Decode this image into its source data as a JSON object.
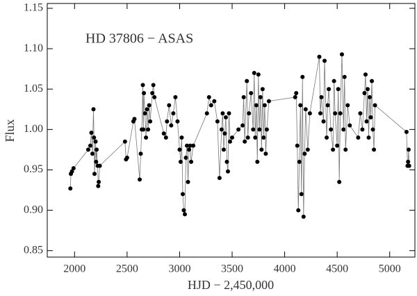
{
  "chart_data": {
    "type": "line",
    "annotation": "HD 37806 − ASAS",
    "x_label": "HJD − 2,450,000",
    "y_label": "Flux",
    "color": "#000000",
    "line_color": "#777777",
    "markers": true,
    "x": [
      1960,
      1965,
      1975,
      1990,
      2130,
      2150,
      2160,
      2170,
      2180,
      2185,
      2190,
      2200,
      2205,
      2210,
      2220,
      2225,
      2230,
      2240,
      2480,
      2490,
      2500,
      2560,
      2570,
      2620,
      2630,
      2640,
      2650,
      2655,
      2660,
      2670,
      2680,
      2690,
      2700,
      2710,
      2720,
      2740,
      2750,
      2760,
      2850,
      2870,
      2880,
      2900,
      2920,
      2940,
      2960,
      2980,
      3000,
      3010,
      3020,
      3030,
      3040,
      3050,
      3060,
      3070,
      3080,
      3090,
      3100,
      3110,
      3130,
      3260,
      3280,
      3300,
      3330,
      3360,
      3380,
      3400,
      3410,
      3420,
      3430,
      3440,
      3450,
      3460,
      3470,
      3480,
      3500,
      3560,
      3600,
      3610,
      3620,
      3640,
      3650,
      3660,
      3680,
      3700,
      3710,
      3720,
      3730,
      3740,
      3750,
      3760,
      3770,
      3780,
      3790,
      3800,
      3810,
      3820,
      3830,
      3850,
      4100,
      4110,
      4120,
      4130,
      4140,
      4150,
      4160,
      4170,
      4180,
      4190,
      4200,
      4220,
      4240,
      4330,
      4340,
      4350,
      4370,
      4380,
      4400,
      4410,
      4420,
      4440,
      4460,
      4470,
      4480,
      4500,
      4510,
      4520,
      4530,
      4545,
      4560,
      4570,
      4580,
      4600,
      4620,
      4700,
      4720,
      4740,
      4760,
      4770,
      4780,
      4790,
      4800,
      4810,
      4820,
      4830,
      4840,
      4850,
      4860,
      5160,
      5170,
      5175,
      5180,
      5185
    ],
    "values": [
      0.927,
      0.945,
      0.948,
      0.952,
      0.975,
      0.98,
      0.996,
      0.97,
      1.025,
      0.99,
      0.945,
      0.985,
      0.96,
      0.975,
      0.955,
      0.93,
      0.935,
      0.955,
      0.985,
      0.963,
      0.965,
      1.01,
      1.013,
      0.938,
      0.97,
      1.0,
      1.055,
      1.0,
      1.045,
      1.02,
      0.99,
      1.025,
      1.0,
      1.03,
      1.01,
      1.045,
      1.055,
      1.04,
      0.995,
      0.99,
      1.01,
      1.03,
      1.005,
      1.02,
      1.04,
      1.01,
      0.975,
      0.96,
      0.99,
      0.92,
      0.9,
      0.895,
      0.965,
      0.98,
      0.935,
      0.975,
      0.98,
      0.96,
      0.98,
      1.02,
      1.04,
      1.03,
      1.035,
      1.01,
      0.94,
      1.0,
      1.02,
      0.975,
      0.995,
      1.015,
      0.96,
      0.948,
      1.02,
      0.985,
      0.99,
      1.0,
      1.005,
      1.04,
      0.985,
      1.06,
      0.99,
      1.02,
      1.045,
      1.0,
      1.07,
      0.99,
      1.03,
      0.96,
      1.068,
      1.0,
      1.04,
      0.975,
      1.05,
      0.99,
      1.03,
      0.97,
      1.0,
      1.035,
      1.04,
      1.045,
      0.98,
      0.9,
      0.96,
      1.03,
      0.92,
      1.065,
      0.892,
      0.97,
      1.025,
      0.975,
      1.02,
      1.09,
      1.02,
      1.04,
      1.01,
      1.085,
      0.99,
      1.03,
      1.05,
      1.0,
      0.975,
      1.06,
      1.02,
      0.98,
      1.05,
      0.935,
      1.02,
      1.093,
      1.0,
      1.065,
      0.975,
      1.03,
      1.005,
      0.99,
      1.02,
      1.0,
      1.045,
      1.068,
      1.01,
      1.05,
      0.99,
      1.04,
      1.015,
      1.06,
      1.0,
      0.975,
      1.03,
      0.997,
      0.955,
      0.96,
      0.975,
      0.955
    ],
    "xlim": [
      1740,
      5240
    ],
    "ylim": [
      0.842,
      1.156
    ],
    "xticks": [
      2000,
      2500,
      3000,
      3500,
      4000,
      4500,
      5000
    ],
    "yticks": [
      {
        "value": 0.85,
        "label": "0.85"
      },
      {
        "value": 0.9,
        "label": "0.90"
      },
      {
        "value": 0.95,
        "label": "0.95"
      },
      {
        "value": 1.0,
        "label": "1.00"
      },
      {
        "value": 1.05,
        "label": "1.05"
      },
      {
        "value": 1.1,
        "label": "1.10"
      },
      {
        "value": 1.15,
        "label": "1.15"
      }
    ]
  }
}
